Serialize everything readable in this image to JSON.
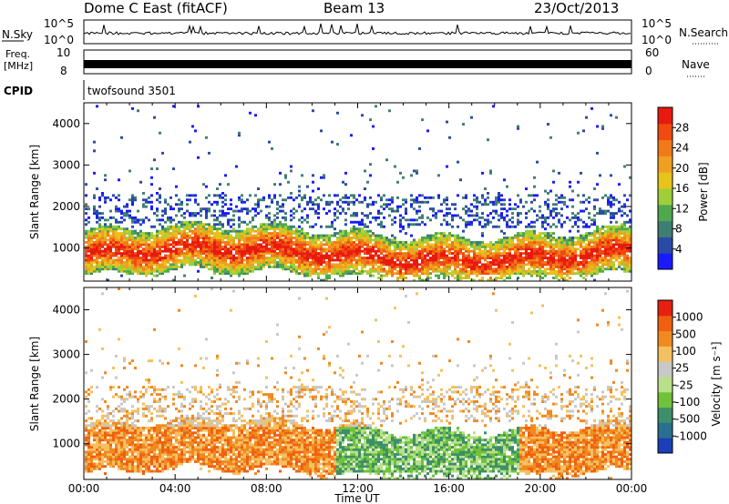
{
  "header": {
    "station": "Dome C East (fitACF)",
    "beam": "Beam 13",
    "date": "23/Oct/2013"
  },
  "top_panels": {
    "nsky": {
      "label": "N.Sky",
      "ticks": [
        "10^5",
        "10^0"
      ],
      "right_label": "N.Search",
      "right_ticks": [
        "10^5",
        "10^0"
      ]
    },
    "freq": {
      "label_top": "Freq.",
      "label_unit": "[MHz]",
      "ticks": [
        "10",
        "8"
      ],
      "right_label": "Nave",
      "right_ticks": [
        "60",
        "0"
      ]
    },
    "cpid": {
      "label": "CPID",
      "value": "twofsound 3501"
    }
  },
  "chart_data": [
    {
      "type": "heatmap",
      "name": "power",
      "ylabel": "Slant Range [km]",
      "ylim": [
        200,
        4500
      ],
      "yticks": [
        1000,
        2000,
        3000,
        4000
      ],
      "xlim": [
        0,
        24
      ],
      "colorbar": {
        "label": "Power [dB]",
        "ticks": [
          4,
          8,
          12,
          16,
          20,
          24,
          28
        ],
        "range": [
          0,
          32
        ],
        "colors": [
          "#1a1aff",
          "#2a4aa8",
          "#3f7f73",
          "#4ea84e",
          "#9ecf3a",
          "#e8c31a",
          "#f0a020",
          "#f07a1a",
          "#f04a10",
          "#e81a10"
        ]
      }
    },
    {
      "type": "heatmap",
      "name": "velocity",
      "ylabel": "Slant Range [km]",
      "ylim": [
        200,
        4500
      ],
      "yticks": [
        1000,
        2000,
        3000,
        4000
      ],
      "xlim": [
        0,
        24
      ],
      "xlabel": "Time UT",
      "xticks": [
        "00:00",
        "04:00",
        "08:00",
        "12:00",
        "16:00",
        "20:00",
        "00:00"
      ],
      "colorbar": {
        "label": "Velocity [m s⁻¹]",
        "ticks": [
          "1000",
          "500",
          "100",
          "25",
          "-25",
          "-100",
          "-500",
          "-1000"
        ],
        "colors": [
          "#1a3fb8",
          "#2a6f8f",
          "#3d8f6a",
          "#6fc23a",
          "#b8e08a",
          "#c8c8c8",
          "#f5c060",
          "#f08a20",
          "#f06010",
          "#e82010"
        ]
      }
    }
  ]
}
